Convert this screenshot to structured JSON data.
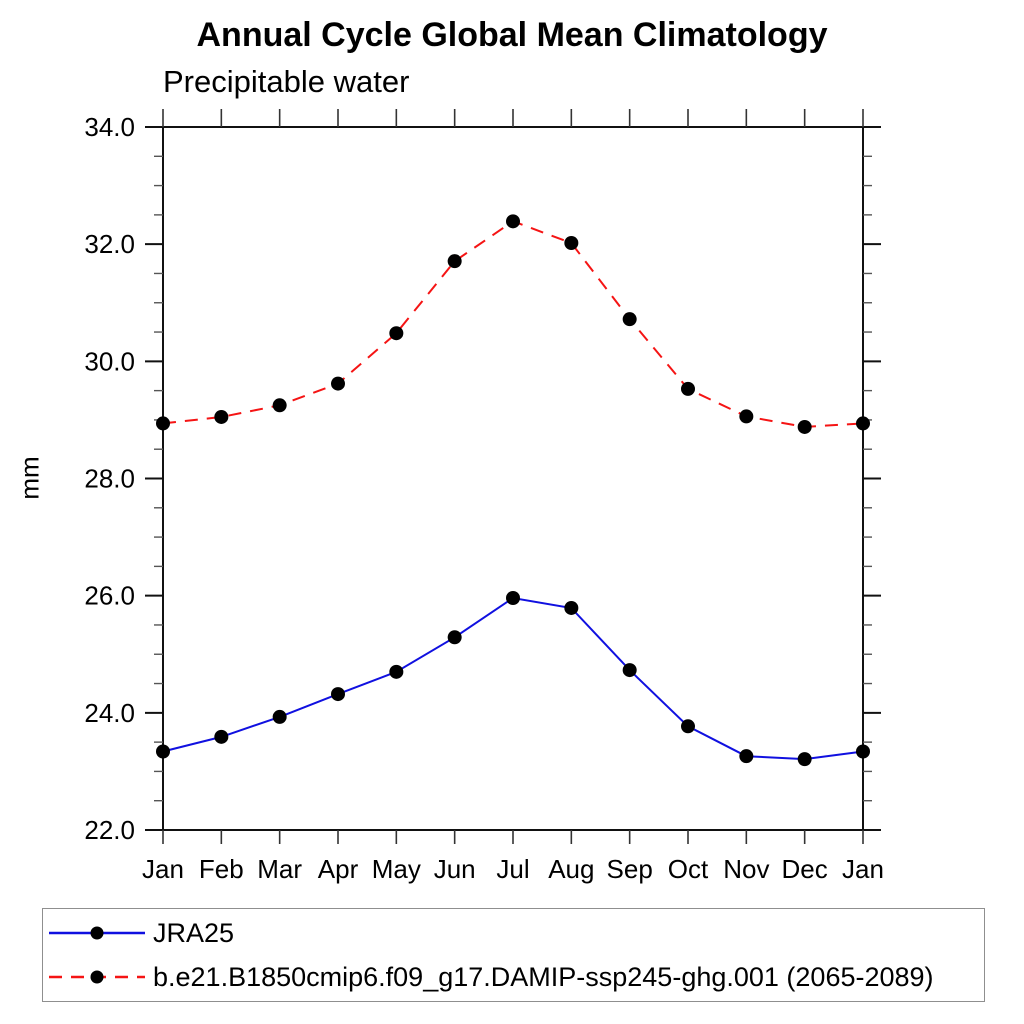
{
  "page": {
    "background": "#ffffff"
  },
  "chart_data": {
    "type": "line",
    "title": "Annual Cycle Global Mean Climatology",
    "subtitle": "Precipitable water",
    "xlabel": "",
    "ylabel": "mm",
    "x_tick_labels": [
      "Jan",
      "Feb",
      "Mar",
      "Apr",
      "May",
      "Jun",
      "Jul",
      "Aug",
      "Sep",
      "Oct",
      "Nov",
      "Dec",
      "Jan"
    ],
    "ylim": [
      22.0,
      34.0
    ],
    "y_major_tick_step": 2.0,
    "y_minor_tick_step": 0.5,
    "y_major_tick_labels": [
      "22.0",
      "24.0",
      "26.0",
      "28.0",
      "30.0",
      "32.0",
      "34.0"
    ],
    "grid": false,
    "frame": "box-with-outward-ticks",
    "legend_position": "bottom-left-box",
    "series": [
      {
        "name": "JRA25",
        "color": "#1010e0",
        "line_style": "solid",
        "line_width": 2,
        "marker": "filled-circle",
        "marker_color": "#000000",
        "values": [
          23.34,
          23.59,
          23.93,
          24.32,
          24.7,
          25.29,
          25.96,
          25.79,
          24.73,
          23.77,
          23.26,
          23.21,
          23.34
        ]
      },
      {
        "name": "b.e21.B1850cmip6.f09_g17.DAMIP-ssp245-ghg.001 (2065-2089)",
        "color": "#f51414",
        "line_style": "dashed",
        "line_width": 2,
        "marker": "filled-circle",
        "marker_color": "#000000",
        "values": [
          28.94,
          29.05,
          29.25,
          29.62,
          30.48,
          31.71,
          32.39,
          32.02,
          30.72,
          29.53,
          29.06,
          28.88,
          28.94
        ]
      }
    ]
  }
}
